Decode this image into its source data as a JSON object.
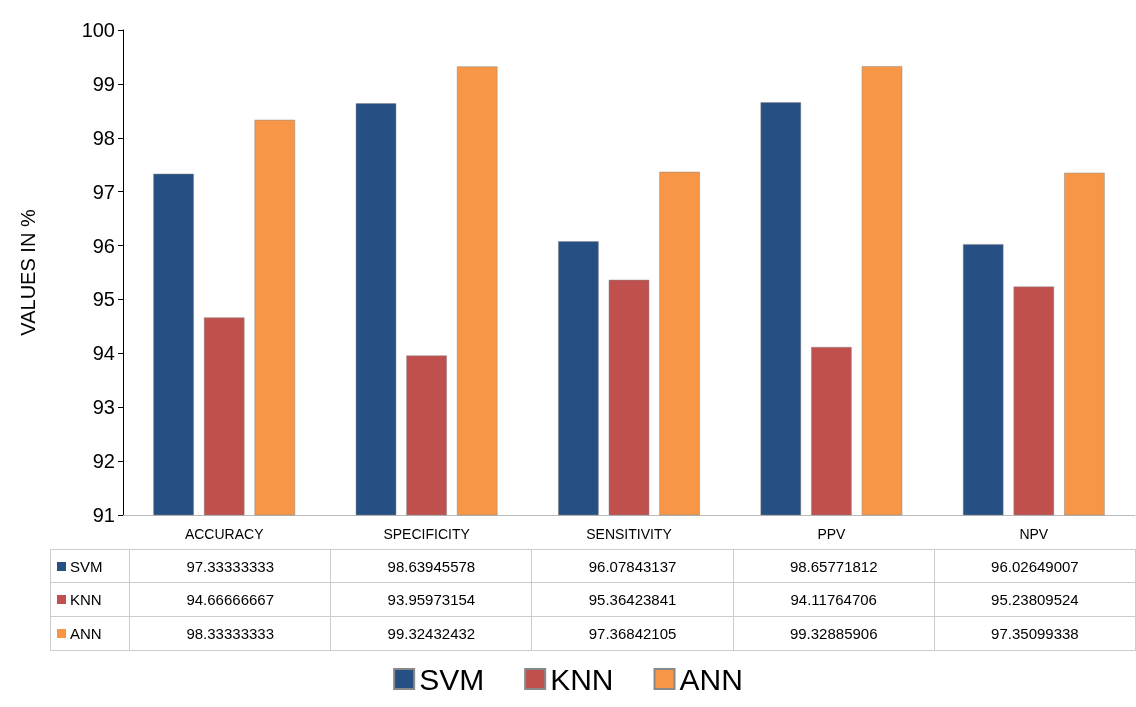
{
  "chart_data": {
    "type": "bar",
    "ylabel": "VALUES IN %",
    "categories": [
      "ACCURACY",
      "SPECIFICITY",
      "SENSITIVITY",
      "PPV",
      "NPV"
    ],
    "series": [
      {
        "name": "SVM",
        "color": "#264f84",
        "values": [
          97.33333333,
          98.63945578,
          96.07843137,
          98.65771812,
          96.02649007
        ]
      },
      {
        "name": "KNN",
        "color": "#c0504d",
        "values": [
          94.66666667,
          93.95973154,
          95.36423841,
          94.11764706,
          95.23809524
        ]
      },
      {
        "name": "ANN",
        "color": "#f79646",
        "values": [
          98.33333333,
          99.32432432,
          97.36842105,
          99.32885906,
          97.35099338
        ]
      }
    ],
    "ylim": [
      91,
      100
    ],
    "yticks": [
      91,
      92,
      93,
      94,
      95,
      96,
      97,
      98,
      99,
      100
    ],
    "grid": false,
    "legend": "bottom",
    "data_labels": true
  }
}
